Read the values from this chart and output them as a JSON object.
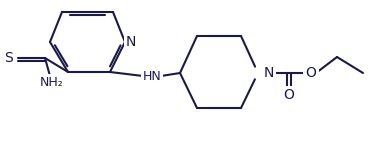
{
  "bg_color": "#ffffff",
  "line_color": "#1a1a4a",
  "line_width": 1.5,
  "font_size": 9,
  "figsize": [
    3.7,
    1.53
  ],
  "dpi": 100,
  "atoms": {
    "N_pyridine_label": "N",
    "N_piperidine_label": "N",
    "S_label": "S",
    "NH_label": "HN",
    "O_ether_label": "O",
    "O_carbonyl_label": "O",
    "NH2_label": "NH₂"
  }
}
